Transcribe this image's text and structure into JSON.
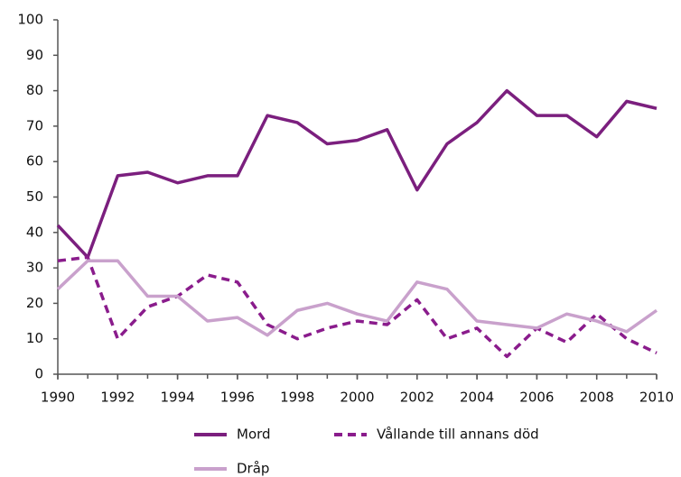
{
  "chart_data": {
    "type": "line",
    "x": [
      1990,
      1991,
      1992,
      1993,
      1994,
      1995,
      1996,
      1997,
      1998,
      1999,
      2000,
      2001,
      2002,
      2003,
      2004,
      2005,
      2006,
      2007,
      2008,
      2009,
      2010
    ],
    "series": [
      {
        "name": "Mord",
        "color": "#7b1f7e",
        "style": "solid",
        "values": [
          42,
          33,
          56,
          57,
          54,
          56,
          56,
          73,
          71,
          65,
          66,
          69,
          52,
          65,
          71,
          80,
          73,
          73,
          67,
          77,
          75
        ]
      },
      {
        "name": "Vållande till annans död",
        "color": "#8a1c8c",
        "style": "dashed",
        "values": [
          32,
          33,
          10,
          19,
          22,
          28,
          26,
          14,
          10,
          13,
          15,
          14,
          21,
          10,
          13,
          5,
          13,
          9,
          17,
          10,
          6
        ]
      },
      {
        "name": "Dråp",
        "color": "#c9a1cc",
        "style": "solid",
        "values": [
          24,
          32,
          32,
          22,
          22,
          15,
          16,
          11,
          18,
          20,
          17,
          15,
          26,
          24,
          15,
          14,
          13,
          17,
          15,
          12,
          18
        ]
      }
    ],
    "xlim": [
      1990,
      2010
    ],
    "xticks": [
      1990,
      1992,
      1994,
      1996,
      1998,
      2000,
      2002,
      2004,
      2006,
      2008,
      2010
    ],
    "ylim": [
      0,
      100
    ],
    "yticks": [
      0,
      10,
      20,
      30,
      40,
      50,
      60,
      70,
      80,
      90,
      100
    ],
    "grid": false,
    "legend": "bottom"
  }
}
